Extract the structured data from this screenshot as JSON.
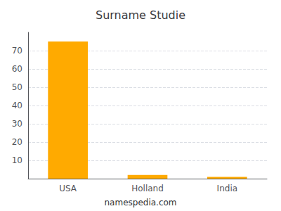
{
  "chart_data": {
    "type": "bar",
    "title": "Surname Studie",
    "categories": [
      "USA",
      "Holland",
      "India"
    ],
    "values": [
      75,
      2,
      1
    ],
    "color": "#FFAA00",
    "ylim": [
      0,
      80
    ],
    "yticks": [
      10,
      20,
      30,
      40,
      50,
      60,
      70
    ],
    "grid": true,
    "annotations": [
      "namespedia.com"
    ]
  }
}
